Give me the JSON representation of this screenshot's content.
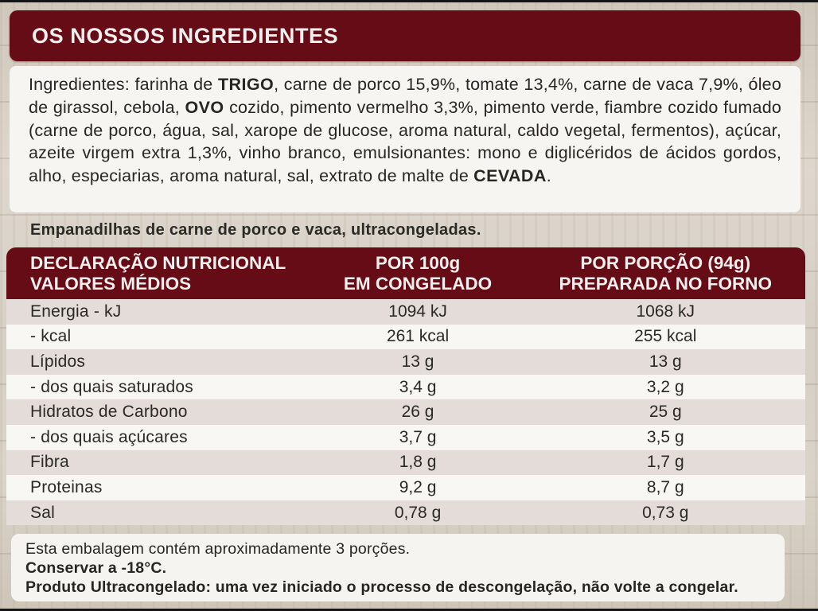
{
  "page": {
    "header_title": "OS NOSSOS INGREDIENTES",
    "subtitle": "Empanadilhas de carne de porco e vaca, ultracongeladas."
  },
  "colors": {
    "brand_maroon": "#650c16",
    "panel_white": "#f7f5f2",
    "row_alt_gray": "#e4dcd8",
    "wood_background": "#d7d0c5",
    "text_dark": "#282623"
  },
  "ingredients": {
    "segments": [
      {
        "text": "Ingredientes: farinha de ",
        "bold": false
      },
      {
        "text": "TRIGO",
        "bold": true
      },
      {
        "text": ", carne de porco 15,9%, tomate 13,4%, carne de vaca 7,9%, óleo de girassol, cebola, ",
        "bold": false
      },
      {
        "text": "OVO",
        "bold": true
      },
      {
        "text": " cozido, pimento vermelho 3,3%, pimento verde, fiambre cozido fumado (carne de porco, água, sal, xarope de glucose, aroma natural, caldo vegetal, fermentos), açúcar, azeite virgem extra 1,3%, vinho branco, emulsionantes: mono e diglicéridos de ácidos gordos, alho, especiarias, aroma natural, sal, extrato de malte de ",
        "bold": false
      },
      {
        "text": "CEVADA",
        "bold": true
      },
      {
        "text": ".",
        "bold": false
      }
    ]
  },
  "nutrition": {
    "header": {
      "col1_line1": "DECLARAÇÃO NUTRICIONAL",
      "col1_line2": "VALORES MÉDIOS",
      "col2_line1": "POR 100g",
      "col2_line2": "EM CONGELADO",
      "col3_line1": "POR PORÇÃO (94g)",
      "col3_line2": "PREPARADA NO FORNO"
    },
    "rows": [
      {
        "label": "Energia - kJ",
        "per_100g": "1094 kJ",
        "per_portion": "1068 kJ"
      },
      {
        "label": "- kcal",
        "per_100g": "261 kcal",
        "per_portion": "255 kcal"
      },
      {
        "label": "Lípidos",
        "per_100g": "13 g",
        "per_portion": "13 g"
      },
      {
        "label": "- dos quais saturados",
        "per_100g": "3,4 g",
        "per_portion": "3,2 g"
      },
      {
        "label": "Hidratos de Carbono",
        "per_100g": "26 g",
        "per_portion": "25 g"
      },
      {
        "label": "- dos quais açúcares",
        "per_100g": "3,7 g",
        "per_portion": "3,5 g"
      },
      {
        "label": "Fibra",
        "per_100g": "1,8 g",
        "per_portion": "1,7 g"
      },
      {
        "label": "Proteinas",
        "per_100g": "9,2 g",
        "per_portion": "8,7 g"
      },
      {
        "label": "Sal",
        "per_100g": "0,78 g",
        "per_portion": "0,73 g"
      }
    ]
  },
  "footer": {
    "line1": "Esta embalagem contém aproximadamente 3 porções.",
    "line2": "Conservar a -18°C.",
    "line3": "Produto Ultracongelado: uma vez iniciado o processo de descongelação, não volte a congelar."
  }
}
